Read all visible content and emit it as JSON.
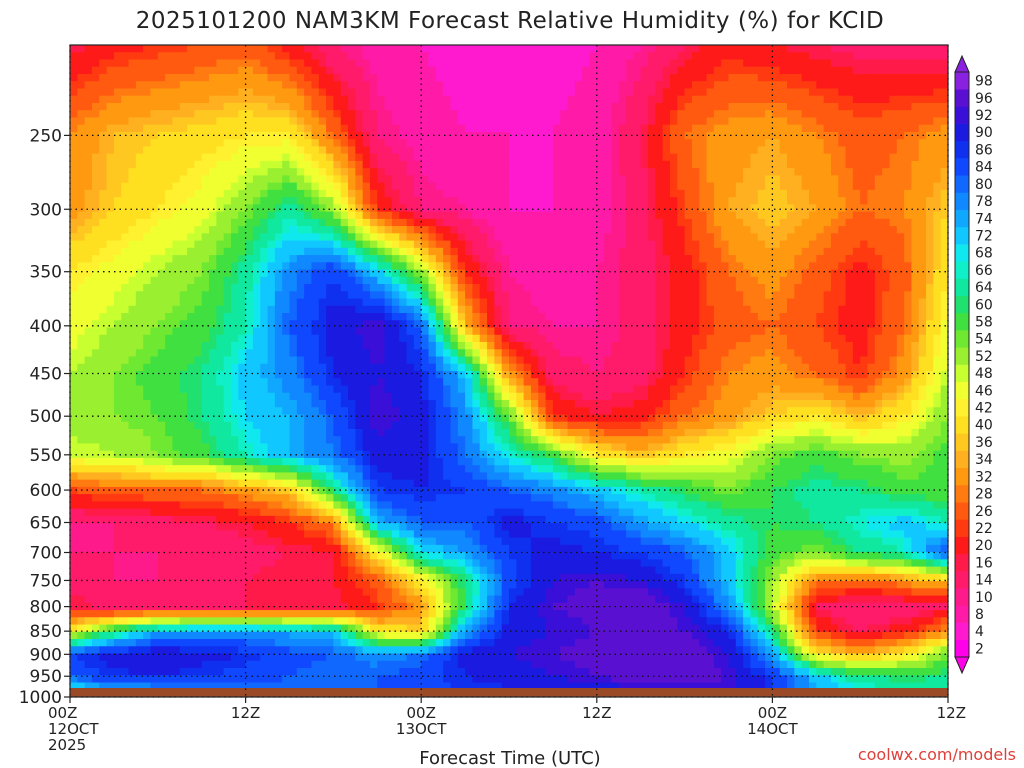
{
  "chart_data": {
    "type": "heatmap",
    "title": "2025101200 NAM3KM Forecast Relative Humidity (%) for KCID",
    "xlabel": "Forecast Time (UTC)",
    "ylabel": "",
    "credit": "coolwx.com/models",
    "x_ticks": [
      {
        "hours": 0,
        "lines": [
          "00Z",
          "12OCT",
          "2025"
        ]
      },
      {
        "hours": 12,
        "lines": [
          "12Z"
        ]
      },
      {
        "hours": 24,
        "lines": [
          "00Z",
          "13OCT"
        ]
      },
      {
        "hours": 36,
        "lines": [
          "12Z"
        ]
      },
      {
        "hours": 48,
        "lines": [
          "00Z",
          "14OCT"
        ]
      },
      {
        "hours": 60,
        "lines": [
          "12Z"
        ]
      }
    ],
    "xlim": [
      0,
      60
    ],
    "y_ticks": [
      250,
      300,
      350,
      400,
      450,
      500,
      550,
      600,
      650,
      700,
      750,
      800,
      850,
      900,
      950,
      1000
    ],
    "ylim": [
      200,
      1000
    ],
    "y_scale": "log-pressure",
    "ground_level_hpa": 978,
    "colorbar_labels": [
      2,
      4,
      8,
      10,
      14,
      16,
      20,
      22,
      26,
      28,
      32,
      34,
      36,
      40,
      42,
      46,
      48,
      52,
      54,
      58,
      60,
      64,
      66,
      68,
      72,
      74,
      78,
      80,
      84,
      86,
      90,
      92,
      96,
      98
    ],
    "colorbar_colors": [
      "#ff00e8",
      "#ff1ad0",
      "#ff1aa8",
      "#ff1a8c",
      "#ff1a6a",
      "#ff1a4a",
      "#ff1a1a",
      "#ff3a10",
      "#ff5a10",
      "#ff7a10",
      "#ff9a10",
      "#ffb020",
      "#ffc820",
      "#ffe020",
      "#fff030",
      "#f0ff30",
      "#c8ff30",
      "#9af030",
      "#6ee830",
      "#40e040",
      "#20e070",
      "#10e8a0",
      "#10f0c8",
      "#10e8f0",
      "#10c8ff",
      "#10a8ff",
      "#1088ff",
      "#1068ff",
      "#1048ff",
      "#1030f0",
      "#1a1ae0",
      "#3a10d8",
      "#5a10d0",
      "#8a20e0"
    ],
    "rh_grid_x_hours": [
      0,
      3,
      6,
      9,
      12,
      15,
      18,
      21,
      24,
      27,
      30,
      33,
      36,
      39,
      42,
      45,
      48,
      51,
      54,
      57,
      60
    ],
    "rh_grid_levels_hpa": [
      1000,
      950,
      900,
      850,
      800,
      750,
      700,
      650,
      600,
      550,
      500,
      450,
      400,
      350,
      300,
      250,
      200
    ],
    "rh_grid": [
      [
        60,
        65,
        70,
        75,
        75,
        78,
        80,
        80,
        82,
        84,
        84,
        84,
        86,
        88,
        88,
        90,
        85,
        75,
        70,
        68,
        64
      ],
      [
        80,
        85,
        86,
        84,
        82,
        80,
        78,
        80,
        82,
        86,
        88,
        90,
        92,
        94,
        94,
        92,
        84,
        70,
        60,
        58,
        60
      ],
      [
        84,
        88,
        90,
        88,
        86,
        82,
        80,
        76,
        78,
        88,
        90,
        92,
        94,
        96,
        96,
        90,
        74,
        40,
        34,
        40,
        54
      ],
      [
        40,
        60,
        72,
        74,
        74,
        72,
        70,
        40,
        36,
        74,
        88,
        90,
        92,
        94,
        92,
        86,
        60,
        20,
        14,
        18,
        30
      ],
      [
        16,
        12,
        12,
        14,
        14,
        14,
        14,
        20,
        30,
        60,
        86,
        92,
        94,
        96,
        90,
        76,
        48,
        14,
        10,
        10,
        14
      ],
      [
        12,
        10,
        10,
        12,
        14,
        16,
        16,
        24,
        40,
        60,
        82,
        90,
        92,
        90,
        84,
        70,
        50,
        28,
        26,
        30,
        36
      ],
      [
        10,
        10,
        10,
        10,
        12,
        14,
        16,
        40,
        68,
        74,
        84,
        88,
        86,
        84,
        80,
        70,
        56,
        52,
        60,
        64,
        84
      ],
      [
        10,
        10,
        12,
        14,
        16,
        20,
        28,
        72,
        80,
        80,
        88,
        84,
        82,
        74,
        68,
        62,
        58,
        60,
        66,
        70,
        64
      ],
      [
        22,
        24,
        26,
        26,
        30,
        36,
        60,
        84,
        86,
        84,
        80,
        76,
        70,
        64,
        58,
        52,
        58,
        62,
        60,
        56,
        54
      ],
      [
        46,
        48,
        52,
        56,
        64,
        72,
        78,
        88,
        88,
        78,
        66,
        56,
        40,
        34,
        40,
        44,
        52,
        56,
        52,
        50,
        56
      ],
      [
        50,
        52,
        54,
        60,
        68,
        72,
        80,
        92,
        88,
        76,
        54,
        20,
        16,
        18,
        26,
        30,
        36,
        40,
        34,
        40,
        52
      ],
      [
        48,
        52,
        56,
        60,
        70,
        76,
        86,
        90,
        86,
        70,
        30,
        12,
        10,
        12,
        20,
        28,
        30,
        26,
        20,
        30,
        48
      ],
      [
        44,
        48,
        52,
        56,
        64,
        80,
        88,
        92,
        80,
        34,
        10,
        8,
        8,
        12,
        18,
        24,
        26,
        22,
        18,
        26,
        44
      ],
      [
        40,
        44,
        48,
        52,
        62,
        76,
        84,
        70,
        50,
        20,
        8,
        6,
        8,
        12,
        18,
        26,
        30,
        24,
        18,
        24,
        40
      ],
      [
        30,
        36,
        40,
        44,
        52,
        62,
        50,
        20,
        10,
        8,
        4,
        4,
        6,
        12,
        22,
        32,
        36,
        32,
        26,
        28,
        36
      ],
      [
        28,
        34,
        36,
        38,
        40,
        40,
        26,
        10,
        6,
        4,
        4,
        4,
        6,
        14,
        26,
        30,
        32,
        28,
        24,
        26,
        30
      ],
      [
        14,
        18,
        20,
        22,
        24,
        18,
        10,
        6,
        4,
        2,
        2,
        2,
        4,
        8,
        14,
        18,
        16,
        14,
        12,
        12,
        10
      ]
    ]
  }
}
